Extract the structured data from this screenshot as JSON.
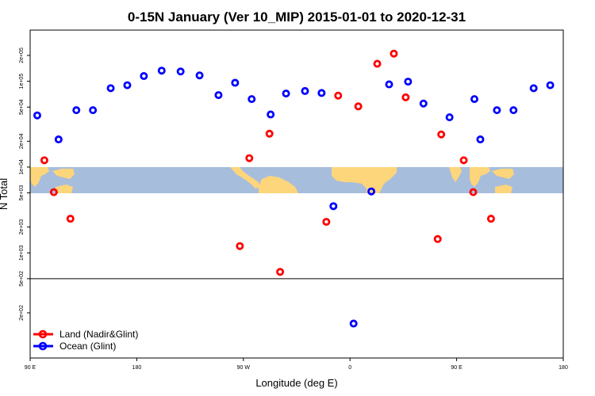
{
  "chart_data": {
    "type": "scatter",
    "title": "0-15N January (Ver 10_MIP)   2015-01-01 to 2020-12-31",
    "xlabel": "Longitude (deg E)",
    "ylabel": "N Total",
    "x_ticks": [
      {
        "value": 90,
        "label": "90 E"
      },
      {
        "value": 180,
        "label": "180"
      },
      {
        "value": 270,
        "label": "90 W"
      },
      {
        "value": 360,
        "label": "0"
      },
      {
        "value": 450,
        "label": "90 E"
      },
      {
        "value": 540,
        "label": "180"
      }
    ],
    "xlim": [
      90,
      540
    ],
    "y_scale": "log",
    "ylim": [
      100,
      500000
    ],
    "y_ticks": [
      {
        "value": 200,
        "label": "2e+02"
      },
      {
        "value": 500,
        "label": "5e+02"
      },
      {
        "value": 1000,
        "label": "1e+03"
      },
      {
        "value": 2000,
        "label": "2e+03"
      },
      {
        "value": 5000,
        "label": "5e+03"
      },
      {
        "value": 10000,
        "label": "1e+04"
      },
      {
        "value": 20000,
        "label": "2e+04"
      },
      {
        "value": 50000,
        "label": "5e+04"
      },
      {
        "value": 100000,
        "label": "1e+05"
      },
      {
        "value": 200000,
        "label": "2e+05"
      }
    ],
    "reference_line": 500,
    "legend_position": "bottom-left",
    "series": [
      {
        "name": "Land (Nadir&Glint)",
        "color": "#ff0000",
        "points": [
          {
            "x": 102,
            "y": 12000
          },
          {
            "x": 110,
            "y": 5100
          },
          {
            "x": 124,
            "y": 2500
          },
          {
            "x": 267,
            "y": 1200
          },
          {
            "x": 275,
            "y": 12700
          },
          {
            "x": 292,
            "y": 24500
          },
          {
            "x": 301,
            "y": 600
          },
          {
            "x": 340,
            "y": 2300
          },
          {
            "x": 350,
            "y": 68000
          },
          {
            "x": 367,
            "y": 51000
          },
          {
            "x": 383,
            "y": 160000
          },
          {
            "x": 397,
            "y": 210000
          },
          {
            "x": 407,
            "y": 65000
          },
          {
            "x": 434,
            "y": 1450
          },
          {
            "x": 437,
            "y": 24000
          },
          {
            "x": 456,
            "y": 12000
          },
          {
            "x": 464,
            "y": 5100
          },
          {
            "x": 479,
            "y": 2500
          }
        ]
      },
      {
        "name": "Ocean (Glint)",
        "color": "#0000ff",
        "points": [
          {
            "x": 96,
            "y": 40000
          },
          {
            "x": 114,
            "y": 21000
          },
          {
            "x": 129,
            "y": 46000
          },
          {
            "x": 143,
            "y": 46000
          },
          {
            "x": 158,
            "y": 83000
          },
          {
            "x": 172,
            "y": 90000
          },
          {
            "x": 186,
            "y": 115000
          },
          {
            "x": 201,
            "y": 133000
          },
          {
            "x": 217,
            "y": 130000
          },
          {
            "x": 233,
            "y": 117000
          },
          {
            "x": 249,
            "y": 69000
          },
          {
            "x": 263,
            "y": 96000
          },
          {
            "x": 277,
            "y": 62000
          },
          {
            "x": 293,
            "y": 41000
          },
          {
            "x": 306,
            "y": 72000
          },
          {
            "x": 322,
            "y": 77000
          },
          {
            "x": 336,
            "y": 73000
          },
          {
            "x": 346,
            "y": 3500
          },
          {
            "x": 363,
            "y": 150
          },
          {
            "x": 378,
            "y": 5200
          },
          {
            "x": 393,
            "y": 92000
          },
          {
            "x": 409,
            "y": 99000
          },
          {
            "x": 422,
            "y": 55000
          },
          {
            "x": 444,
            "y": 38000
          },
          {
            "x": 465,
            "y": 62000
          },
          {
            "x": 470,
            "y": 21000
          },
          {
            "x": 484,
            "y": 46000
          },
          {
            "x": 498,
            "y": 46000
          },
          {
            "x": 515,
            "y": 83000
          },
          {
            "x": 529,
            "y": 90000
          }
        ]
      }
    ]
  }
}
